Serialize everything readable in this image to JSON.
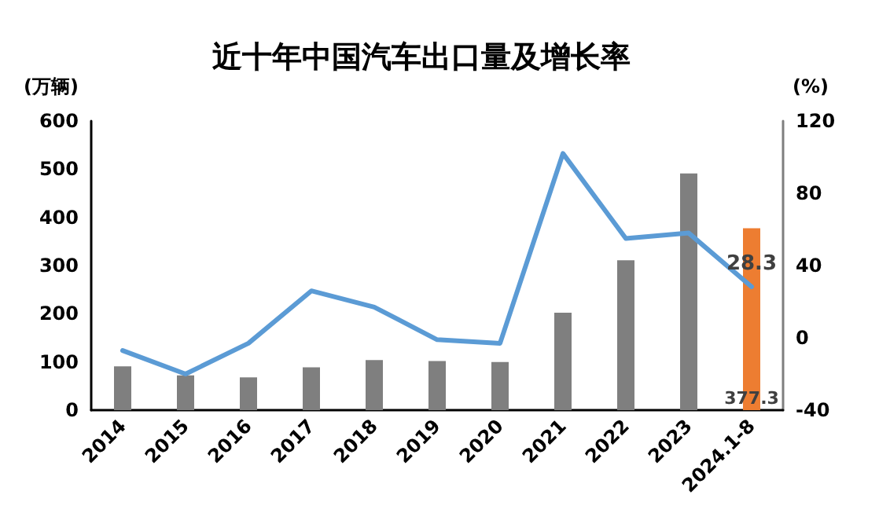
{
  "chart_data": {
    "type": "bar",
    "title": "近十年中国汽车出口量及增长率",
    "ylabel": "(万辆)",
    "y2label": "(%)",
    "categories": [
      "2014",
      "2015",
      "2016",
      "2017",
      "2018",
      "2019",
      "2020",
      "2021",
      "2022",
      "2023",
      "2024.1-8"
    ],
    "series": [
      {
        "colors": [
          "#7f7f7f",
          "#7f7f7f",
          "#7f7f7f",
          "#7f7f7f",
          "#7f7f7f",
          "#7f7f7f",
          "#7f7f7f",
          "#7f7f7f",
          "#7f7f7f",
          "#7f7f7f",
          "#ed7d31"
        ],
        "values": [
          91,
          72,
          68,
          89,
          104,
          102,
          100,
          202,
          311,
          491,
          377.3
        ],
        "value_labels": [
          null,
          null,
          null,
          null,
          null,
          null,
          null,
          null,
          null,
          null,
          "377.3"
        ]
      },
      {
        "type": "line",
        "axis": "y2",
        "color": "#5b9bd5",
        "values": [
          -7,
          -20,
          -3,
          26,
          17,
          -1,
          -3,
          102,
          55,
          58,
          28.3
        ],
        "value_labels": [
          null,
          null,
          null,
          null,
          null,
          null,
          null,
          null,
          null,
          null,
          "28.3"
        ]
      }
    ],
    "ylim": [
      0,
      600
    ],
    "yticks": [
      0,
      100,
      200,
      300,
      400,
      500,
      600
    ],
    "y2lim": [
      -40,
      120
    ],
    "y2ticks": [
      -40,
      0,
      40,
      80,
      120
    ],
    "grid": false,
    "marker": "none"
  }
}
